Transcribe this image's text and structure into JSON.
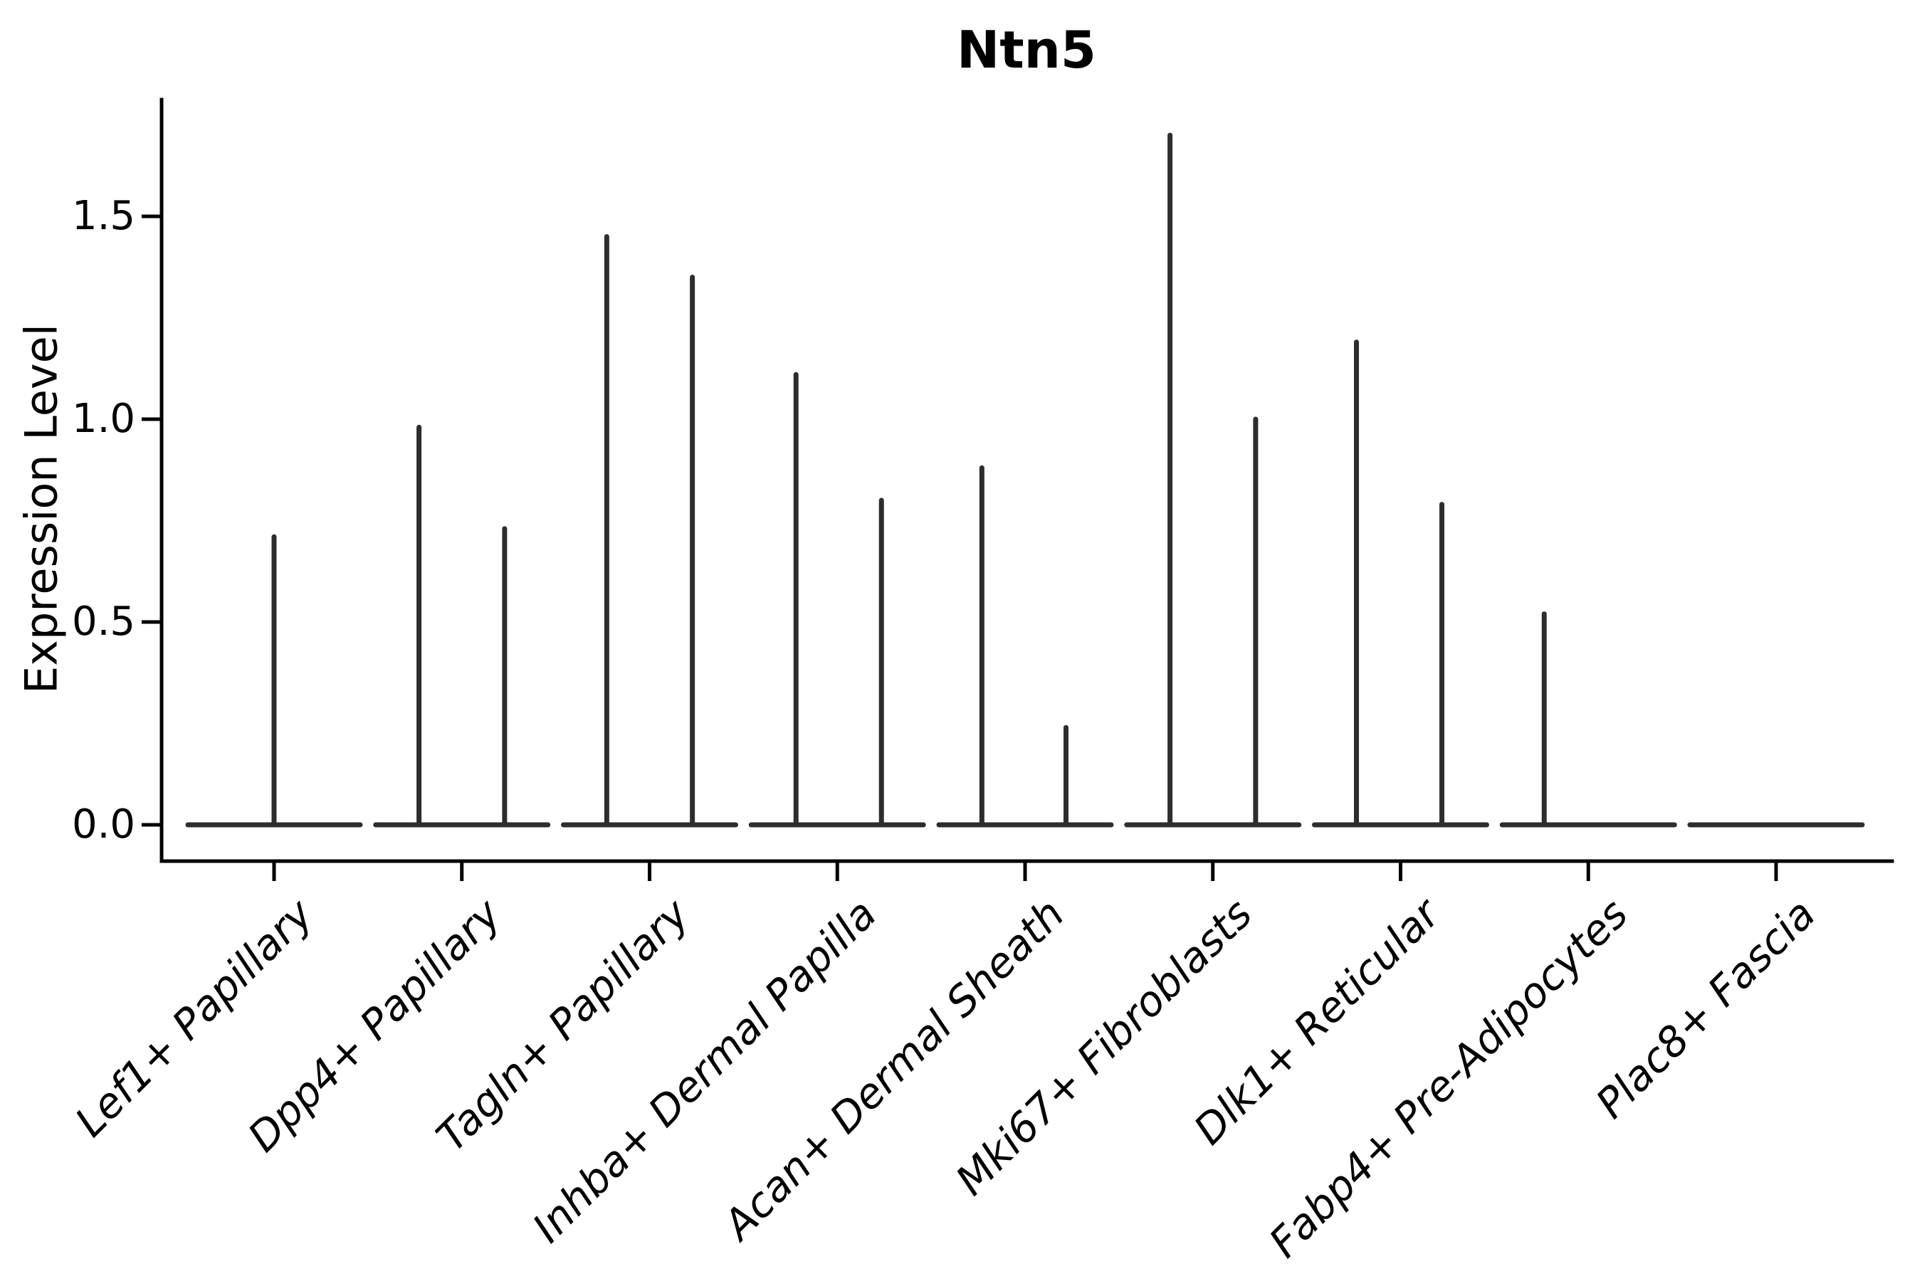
{
  "chart_data": {
    "type": "violin",
    "title": "Ntn5",
    "xlabel": "",
    "ylabel": "Expression Level",
    "ytick_labels": [
      "0.0",
      "0.5",
      "1.0",
      "1.5"
    ],
    "ytick_values": [
      0.0,
      0.5,
      1.0,
      1.5
    ],
    "ylim": [
      -0.09,
      1.79
    ],
    "grid": false,
    "legend": "none",
    "x_tick_rotation_deg": 45,
    "x_tick_font_style": "italic",
    "categories": [
      "Lef1+ Papillary",
      "Dpp4+ Papillary",
      "Tagln+ Papillary",
      "Inhba+ Dermal Papilla",
      "Acan+ Dermal Sheath",
      "Mki67+ Fibroblasts",
      "Dlk1+ Reticular",
      "Fabp4+ Pre-Adipocytes",
      "Plac8+ Fascia"
    ],
    "violins": [
      {
        "category": "Lef1+ Papillary",
        "baseline_at_zero": true,
        "spikes": [
          {
            "offset_frac": 0.0,
            "max_expression": 0.71
          }
        ]
      },
      {
        "category": "Dpp4+ Papillary",
        "baseline_at_zero": true,
        "spikes": [
          {
            "offset_frac": -0.228,
            "max_expression": 0.98
          },
          {
            "offset_frac": 0.228,
            "max_expression": 0.73
          }
        ]
      },
      {
        "category": "Tagln+ Papillary",
        "baseline_at_zero": true,
        "spikes": [
          {
            "offset_frac": -0.228,
            "max_expression": 1.45
          },
          {
            "offset_frac": 0.228,
            "max_expression": 1.35
          }
        ]
      },
      {
        "category": "Inhba+ Dermal Papilla",
        "baseline_at_zero": true,
        "spikes": [
          {
            "offset_frac": -0.22,
            "max_expression": 1.11
          },
          {
            "offset_frac": 0.235,
            "max_expression": 0.8
          }
        ]
      },
      {
        "category": "Acan+ Dermal Sheath",
        "baseline_at_zero": true,
        "spikes": [
          {
            "offset_frac": -0.23,
            "max_expression": 0.88
          },
          {
            "offset_frac": 0.218,
            "max_expression": 0.24
          }
        ]
      },
      {
        "category": "Mki67+ Fibroblasts",
        "baseline_at_zero": true,
        "spikes": [
          {
            "offset_frac": -0.228,
            "max_expression": 1.7
          },
          {
            "offset_frac": 0.228,
            "max_expression": 1.0
          }
        ]
      },
      {
        "category": "Dlk1+ Reticular",
        "baseline_at_zero": true,
        "spikes": [
          {
            "offset_frac": -0.235,
            "max_expression": 1.19
          },
          {
            "offset_frac": 0.22,
            "max_expression": 0.79
          }
        ]
      },
      {
        "category": "Fabp4+ Pre-Adipocytes",
        "baseline_at_zero": true,
        "spikes": [
          {
            "offset_frac": -0.235,
            "max_expression": 0.52
          }
        ]
      },
      {
        "category": "Plac8+ Fascia",
        "baseline_at_zero": true,
        "spikes": []
      }
    ],
    "colors": {
      "violin": "#2d2d2d",
      "axis": "#000000",
      "text": "#000000",
      "background": "#ffffff"
    }
  }
}
